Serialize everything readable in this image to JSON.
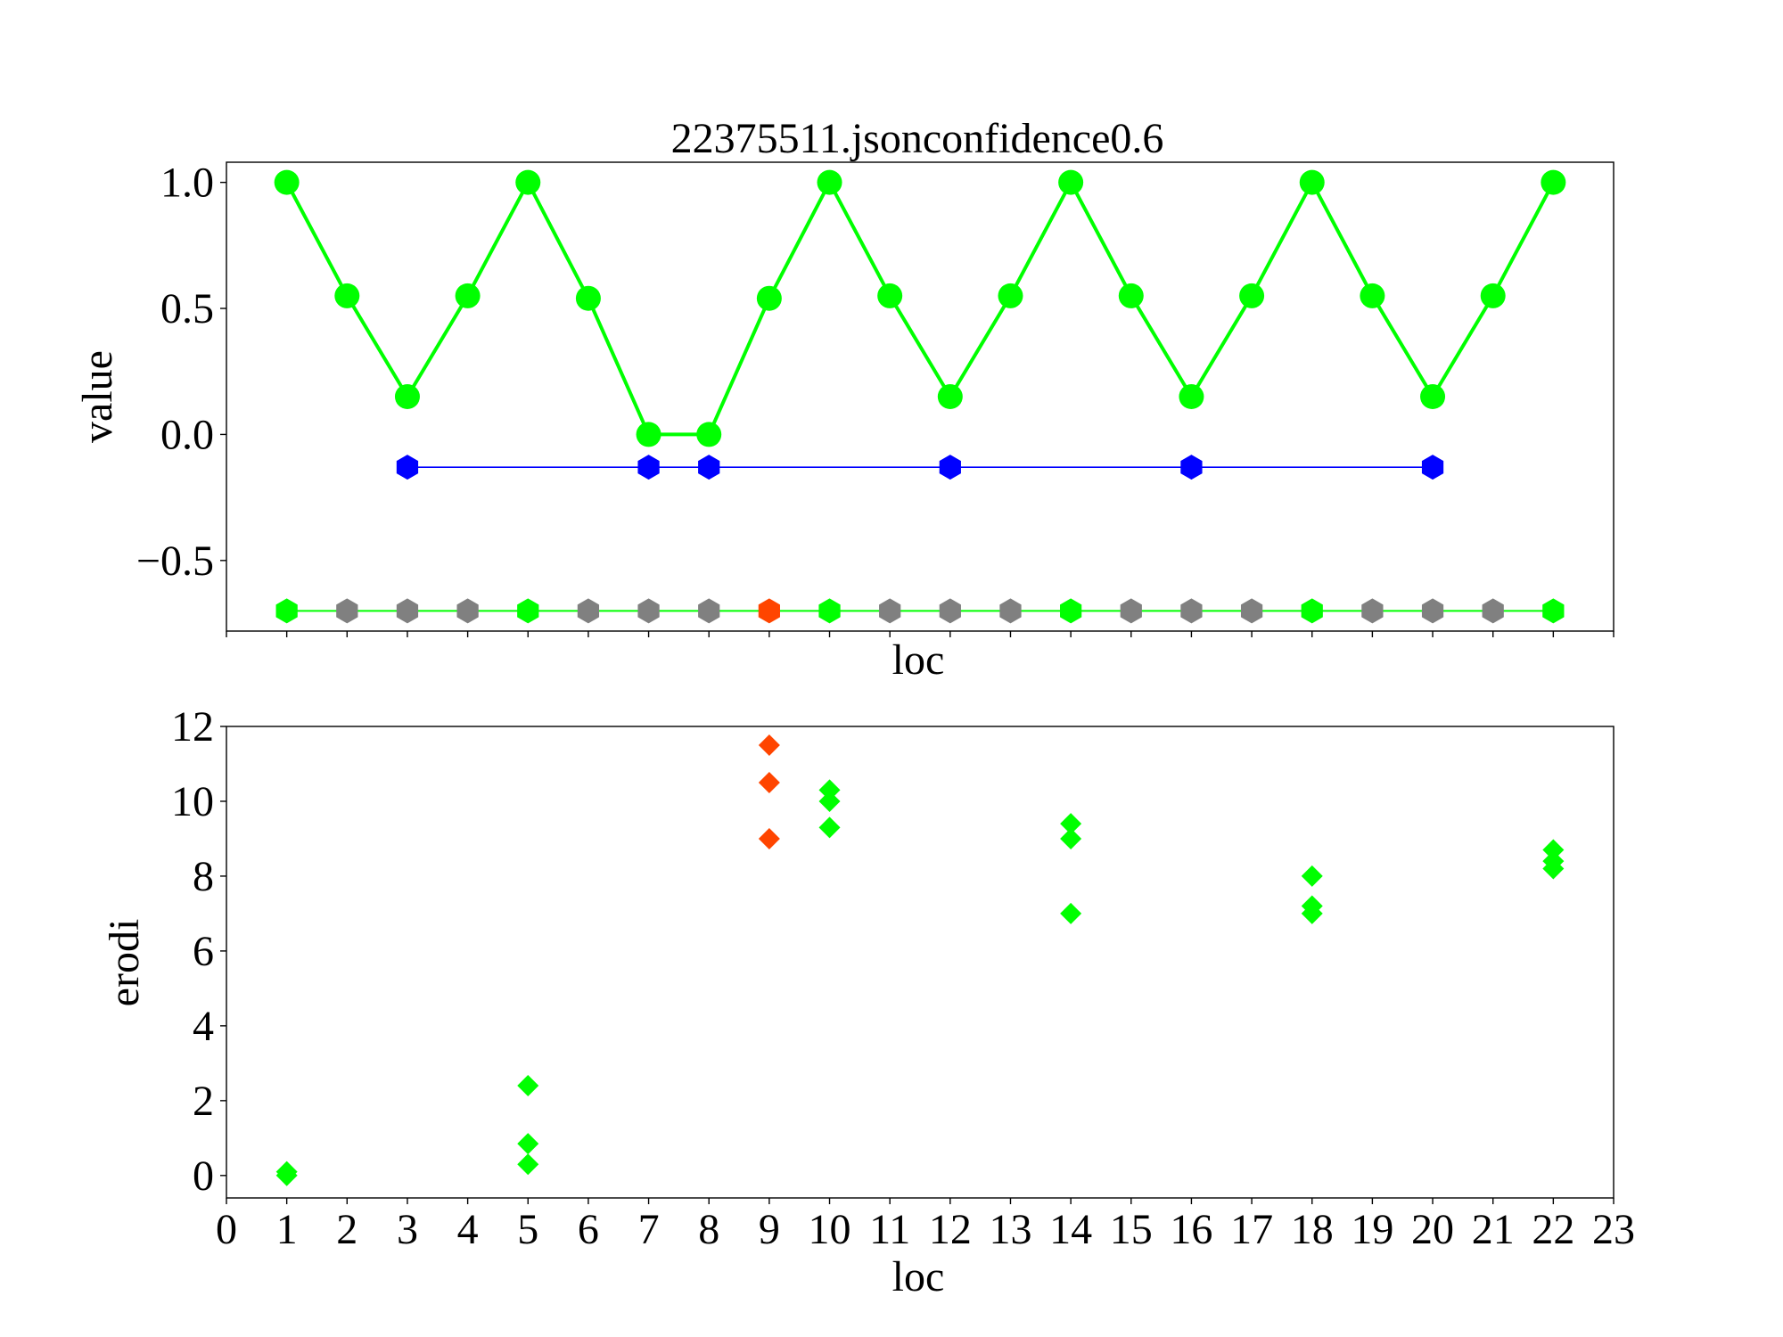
{
  "chart_data": [
    {
      "type": "line",
      "title": "22375511.jsonconfidence0.6",
      "xlabel": "loc",
      "ylabel": "value",
      "xlim": [
        0,
        23
      ],
      "ylim": [
        -0.78,
        1.08
      ],
      "yticks": [
        -0.5,
        0.0,
        0.5,
        1.0
      ],
      "ytick_labels": [
        "−0.5",
        "0.0",
        "0.5",
        "1.0"
      ],
      "x_tick_labels_visible": false,
      "grid": false,
      "series": [
        {
          "marker": "circle",
          "color": "#00ff00",
          "points": [
            [
              1,
              1.0
            ],
            [
              2,
              0.55
            ],
            [
              3,
              0.15
            ],
            [
              4,
              0.55
            ],
            [
              5,
              1.0
            ],
            [
              6,
              0.54
            ],
            [
              7,
              0.0
            ],
            [
              8,
              0.0
            ],
            [
              9,
              0.54
            ],
            [
              10,
              1.0
            ],
            [
              11,
              0.55
            ],
            [
              12,
              0.15
            ],
            [
              13,
              0.55
            ],
            [
              14,
              1.0
            ],
            [
              15,
              0.55
            ],
            [
              16,
              0.15
            ],
            [
              17,
              0.55
            ],
            [
              18,
              1.0
            ],
            [
              19,
              0.55
            ],
            [
              20,
              0.15
            ],
            [
              21,
              0.55
            ],
            [
              22,
              1.0
            ]
          ]
        },
        {
          "marker": "hexagon",
          "color": "#0000ff",
          "points": [
            [
              3,
              -0.13
            ],
            [
              7,
              -0.13
            ],
            [
              8,
              -0.13
            ],
            [
              12,
              -0.13
            ],
            [
              16,
              -0.13
            ],
            [
              20,
              -0.13
            ]
          ]
        },
        {
          "marker": "hexagon",
          "line_color": "#00ff00",
          "y": -0.7,
          "x": [
            1,
            2,
            3,
            4,
            5,
            6,
            7,
            8,
            9,
            10,
            11,
            12,
            13,
            14,
            15,
            16,
            17,
            18,
            19,
            20,
            21,
            22
          ],
          "colors": [
            "#00ff00",
            "#808080",
            "#808080",
            "#808080",
            "#00ff00",
            "#808080",
            "#808080",
            "#808080",
            "#ff4500",
            "#00ff00",
            "#808080",
            "#808080",
            "#808080",
            "#00ff00",
            "#808080",
            "#808080",
            "#808080",
            "#00ff00",
            "#808080",
            "#808080",
            "#808080",
            "#00ff00"
          ]
        }
      ]
    },
    {
      "type": "scatter",
      "xlabel": "loc",
      "ylabel": "erodi",
      "xlim": [
        0,
        23
      ],
      "ylim": [
        -0.6,
        12.0
      ],
      "xticks": [
        0,
        1,
        2,
        3,
        4,
        5,
        6,
        7,
        8,
        9,
        10,
        11,
        12,
        13,
        14,
        15,
        16,
        17,
        18,
        19,
        20,
        21,
        22,
        23
      ],
      "yticks": [
        0,
        2,
        4,
        6,
        8,
        10,
        12
      ],
      "grid": false,
      "marker": "diamond",
      "points": [
        {
          "x": 1,
          "y": 0.0,
          "color": "#00ff00"
        },
        {
          "x": 1,
          "y": 0.1,
          "color": "#00ff00"
        },
        {
          "x": 5,
          "y": 0.3,
          "color": "#00ff00"
        },
        {
          "x": 5,
          "y": 0.85,
          "color": "#00ff00"
        },
        {
          "x": 5,
          "y": 2.4,
          "color": "#00ff00"
        },
        {
          "x": 9,
          "y": 9.0,
          "color": "#ff4500"
        },
        {
          "x": 9,
          "y": 10.5,
          "color": "#ff4500"
        },
        {
          "x": 9,
          "y": 11.5,
          "color": "#ff4500"
        },
        {
          "x": 10,
          "y": 9.3,
          "color": "#00ff00"
        },
        {
          "x": 10,
          "y": 10.0,
          "color": "#00ff00"
        },
        {
          "x": 10,
          "y": 10.3,
          "color": "#00ff00"
        },
        {
          "x": 14,
          "y": 7.0,
          "color": "#00ff00"
        },
        {
          "x": 14,
          "y": 9.0,
          "color": "#00ff00"
        },
        {
          "x": 14,
          "y": 9.4,
          "color": "#00ff00"
        },
        {
          "x": 18,
          "y": 7.0,
          "color": "#00ff00"
        },
        {
          "x": 18,
          "y": 7.2,
          "color": "#00ff00"
        },
        {
          "x": 18,
          "y": 8.0,
          "color": "#00ff00"
        },
        {
          "x": 22,
          "y": 8.2,
          "color": "#00ff00"
        },
        {
          "x": 22,
          "y": 8.4,
          "color": "#00ff00"
        },
        {
          "x": 22,
          "y": 8.7,
          "color": "#00ff00"
        }
      ]
    }
  ]
}
